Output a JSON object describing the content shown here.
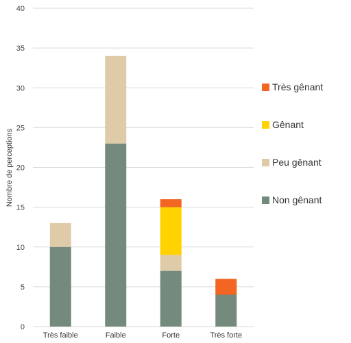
{
  "chart_data": {
    "type": "bar",
    "stacked": true,
    "ylabel": "Nombre de perceptions",
    "xlabel": "",
    "ylim": [
      0,
      40
    ],
    "yticks": [
      0,
      5,
      10,
      15,
      20,
      25,
      30,
      35,
      40
    ],
    "grid": true,
    "legend_position": "right",
    "categories": [
      "Très faible",
      "Faible",
      "Forte",
      "Très forte"
    ],
    "series": [
      {
        "name": "Non gênant",
        "color": "#738a7c",
        "values": [
          10,
          23,
          7,
          4
        ]
      },
      {
        "name": "Peu gênant",
        "color": "#dfcba8",
        "values": [
          3,
          11,
          2,
          0
        ]
      },
      {
        "name": "Gênant",
        "color": "#ffd200",
        "values": [
          0,
          0,
          6,
          0
        ]
      },
      {
        "name": "Très gênant",
        "color": "#f26522",
        "values": [
          0,
          0,
          1,
          2
        ]
      }
    ],
    "legend_order": [
      "Très gênant",
      "Gênant",
      "Peu gênant",
      "Non gênant"
    ]
  }
}
